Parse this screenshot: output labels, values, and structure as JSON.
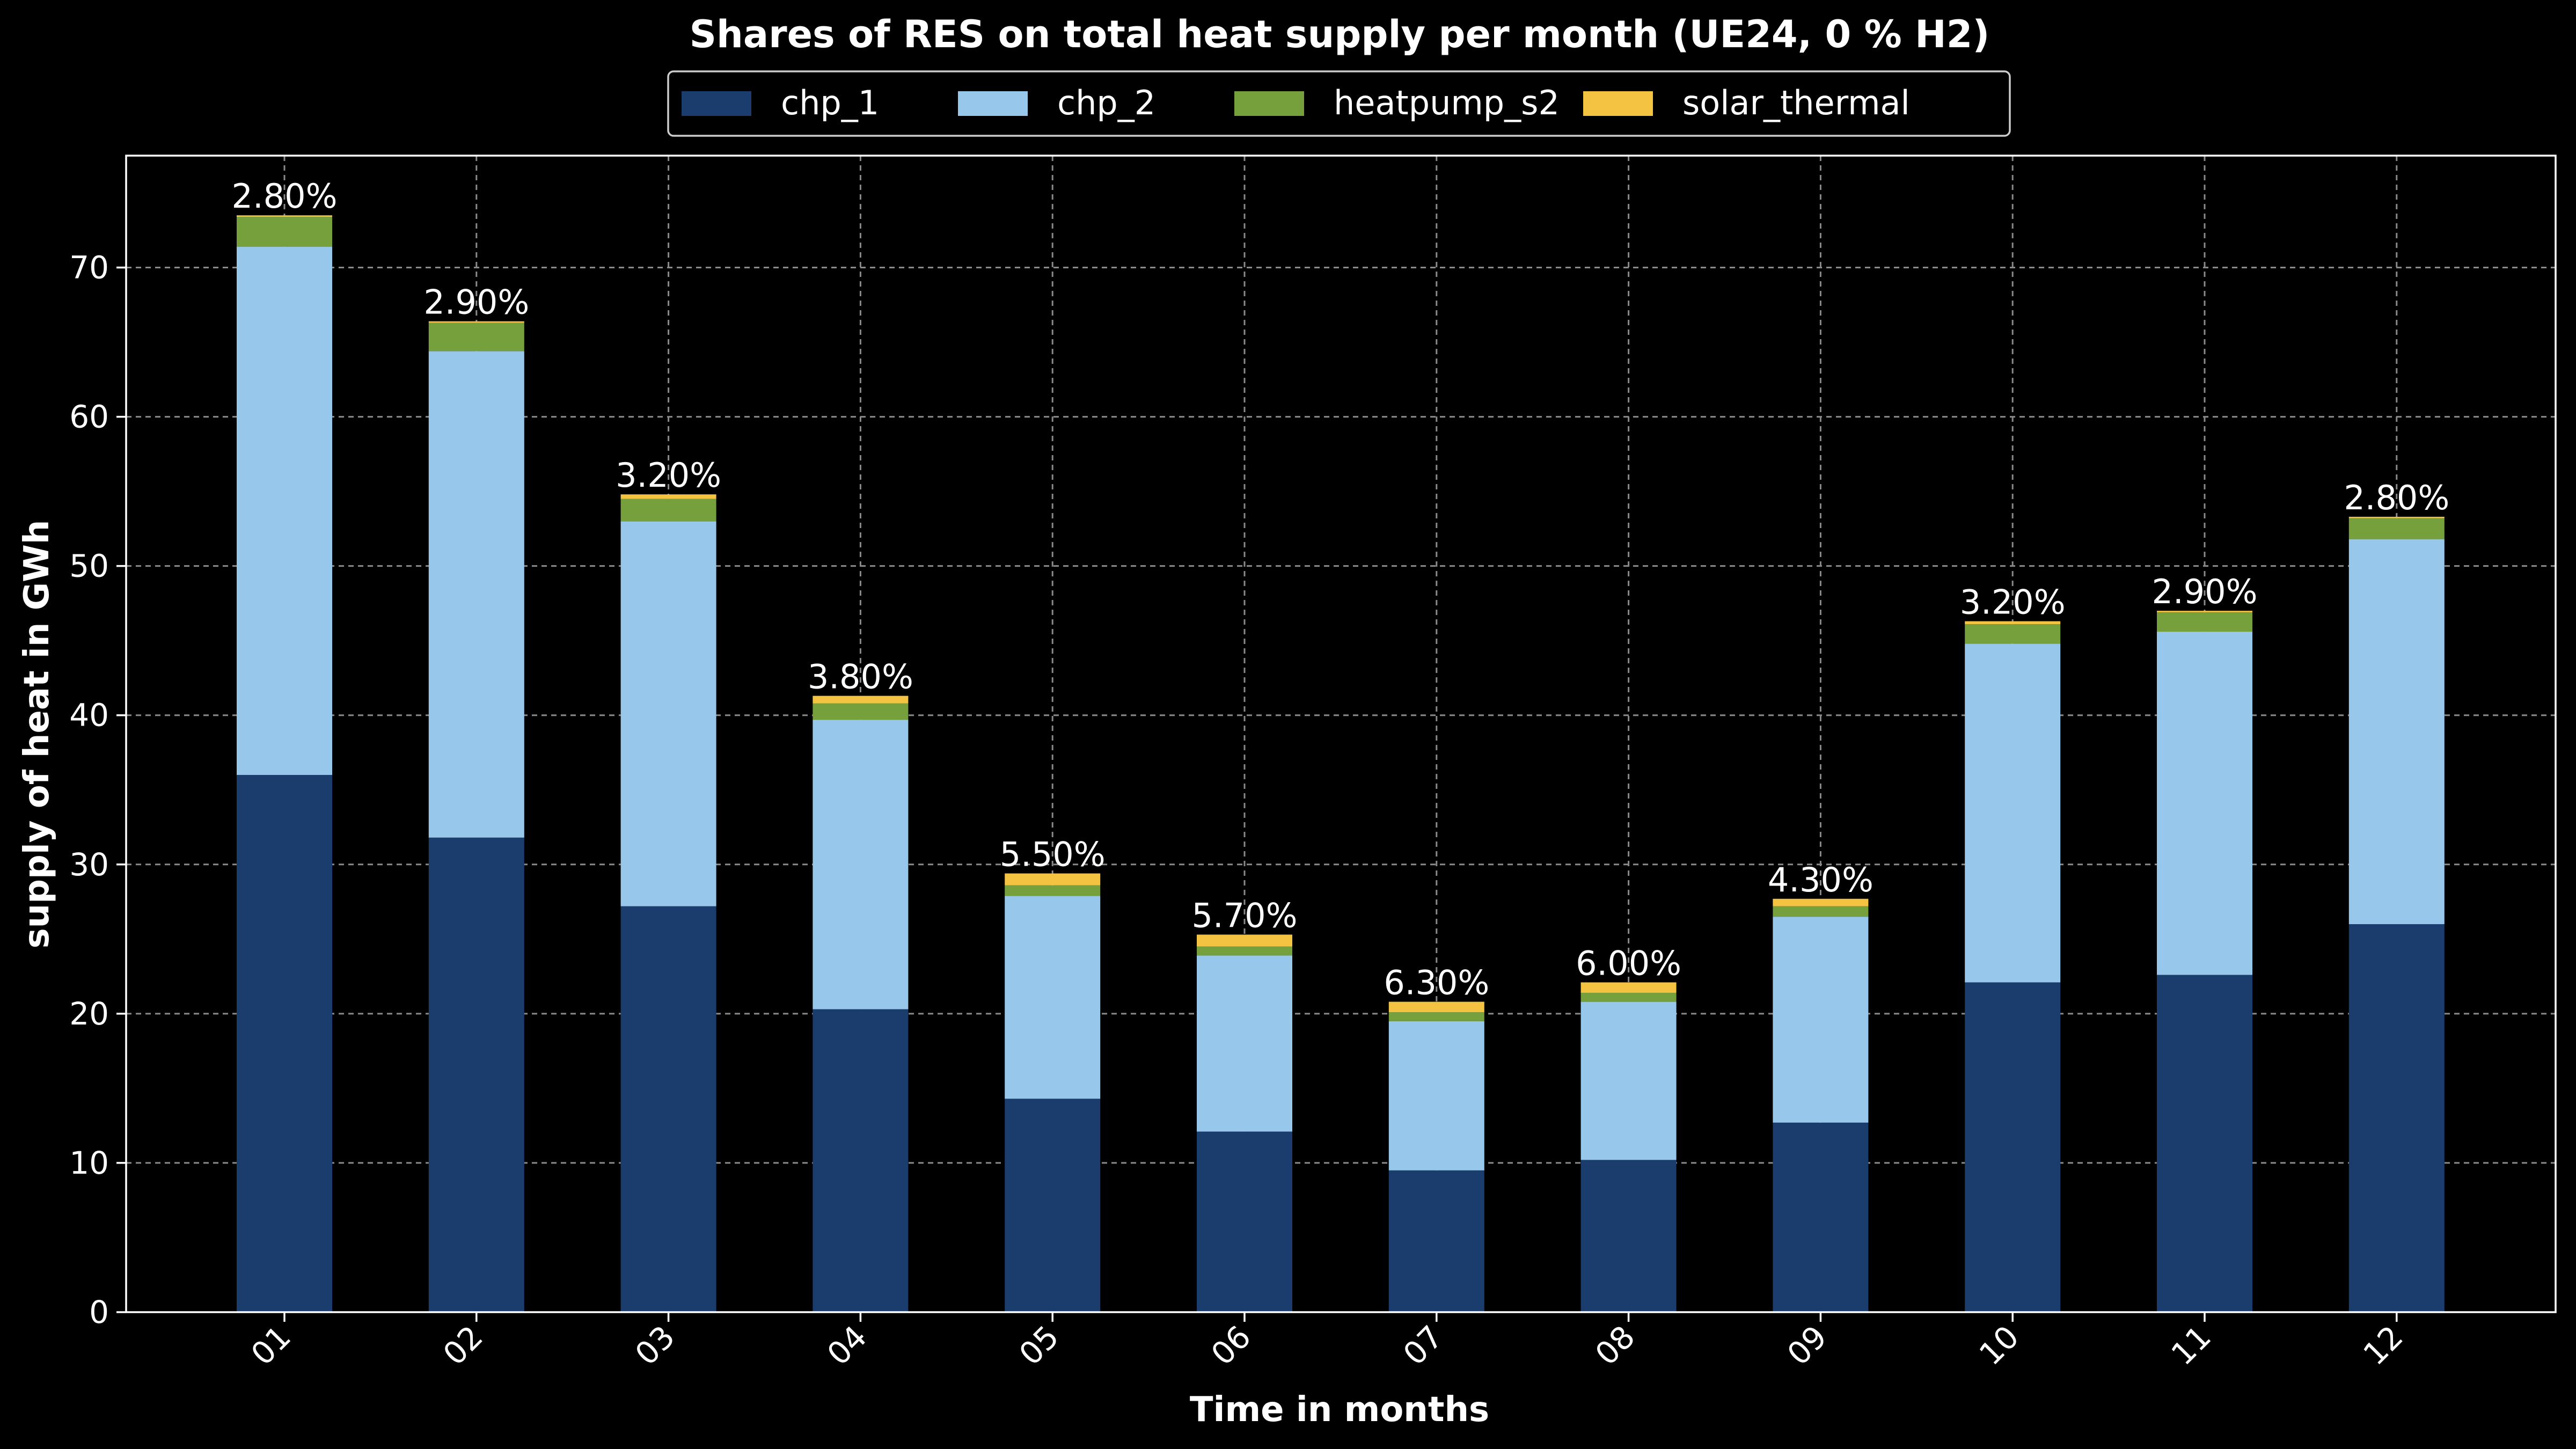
{
  "chart_data": {
    "type": "bar",
    "stacked": true,
    "title": "Shares of RES on total heat supply per month (UE24, 0 % H2)",
    "xlabel": "Time in months",
    "ylabel": "supply of heat in GWh",
    "ylim": [
      0,
      77.5
    ],
    "yticks": [
      "0",
      "10",
      "20",
      "30",
      "40",
      "50",
      "60",
      "70"
    ],
    "grid": true,
    "legend_position": "top-center",
    "categories": [
      "01",
      "02",
      "03",
      "04",
      "05",
      "06",
      "07",
      "08",
      "09",
      "10",
      "11",
      "12"
    ],
    "series": [
      {
        "name": "chp_1",
        "color": "#1a3d6e",
        "values": [
          36.0,
          31.8,
          27.2,
          20.3,
          14.3,
          12.1,
          9.5,
          10.2,
          12.7,
          22.1,
          22.6,
          26.0
        ]
      },
      {
        "name": "chp_2",
        "color": "#97c8ec",
        "values": [
          35.4,
          32.6,
          25.8,
          19.4,
          13.6,
          11.8,
          10.0,
          10.6,
          13.8,
          22.7,
          23.0,
          25.8
        ]
      },
      {
        "name": "heatpump_s2",
        "color": "#76a03c",
        "values": [
          2.0,
          1.9,
          1.5,
          1.1,
          0.7,
          0.6,
          0.6,
          0.6,
          0.7,
          1.3,
          1.3,
          1.4
        ]
      },
      {
        "name": "solar_thermal",
        "color": "#f5c342",
        "values": [
          0.1,
          0.1,
          0.3,
          0.5,
          0.8,
          0.8,
          0.7,
          0.7,
          0.5,
          0.2,
          0.1,
          0.1
        ]
      }
    ],
    "annotations": [
      "2.80%",
      "2.90%",
      "3.20%",
      "3.80%",
      "5.50%",
      "5.70%",
      "6.30%",
      "6.00%",
      "4.30%",
      "3.20%",
      "2.90%",
      "2.80%"
    ]
  }
}
